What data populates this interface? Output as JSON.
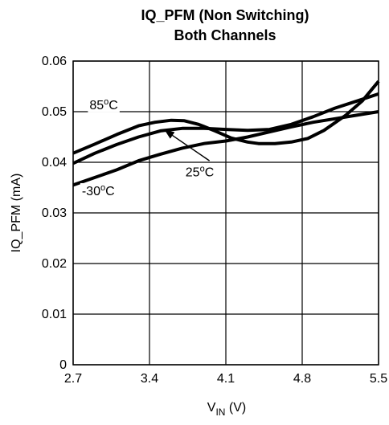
{
  "chart_data": {
    "type": "line",
    "title_lines": [
      "IQ_PFM (Non Switching)",
      "Both Channels"
    ],
    "ylabel": "IQ_PFM (mA)",
    "xlabel": {
      "main": "V",
      "sub": "IN",
      "unit": " (V)"
    },
    "x_ticks": [
      "2.7",
      "3.4",
      "4.1",
      "4.8",
      "5.5"
    ],
    "y_ticks": [
      "0",
      "0.01",
      "0.02",
      "0.03",
      "0.04",
      "0.05",
      "0.06"
    ],
    "xlim": [
      2.7,
      5.5
    ],
    "ylim": [
      0,
      0.06
    ],
    "grid": true,
    "series": [
      {
        "name": "85°C",
        "color": "#000000",
        "points": [
          [
            2.7,
            0.0418
          ],
          [
            2.9,
            0.0436
          ],
          [
            3.1,
            0.0455
          ],
          [
            3.3,
            0.0472
          ],
          [
            3.45,
            0.0479
          ],
          [
            3.6,
            0.0483
          ],
          [
            3.72,
            0.0482
          ],
          [
            3.85,
            0.0475
          ],
          [
            4.0,
            0.0462
          ],
          [
            4.15,
            0.0448
          ],
          [
            4.3,
            0.044
          ],
          [
            4.4,
            0.0437
          ],
          [
            4.55,
            0.0437
          ],
          [
            4.7,
            0.044
          ],
          [
            4.85,
            0.0447
          ],
          [
            5.0,
            0.0463
          ],
          [
            5.2,
            0.0493
          ],
          [
            5.35,
            0.0521
          ],
          [
            5.5,
            0.056
          ]
        ]
      },
      {
        "name": "25°C",
        "color": "#000000",
        "points": [
          [
            2.7,
            0.0398
          ],
          [
            2.9,
            0.0418
          ],
          [
            3.1,
            0.0435
          ],
          [
            3.3,
            0.045
          ],
          [
            3.5,
            0.0462
          ],
          [
            3.7,
            0.0467
          ],
          [
            3.9,
            0.0467
          ],
          [
            4.1,
            0.0465
          ],
          [
            4.3,
            0.0463
          ],
          [
            4.5,
            0.0465
          ],
          [
            4.7,
            0.0475
          ],
          [
            4.9,
            0.049
          ],
          [
            5.1,
            0.0507
          ],
          [
            5.3,
            0.0521
          ],
          [
            5.5,
            0.0535
          ]
        ]
      },
      {
        "name": "-30°C",
        "color": "#000000",
        "points": [
          [
            2.7,
            0.0355
          ],
          [
            2.9,
            0.037
          ],
          [
            3.1,
            0.0385
          ],
          [
            3.3,
            0.0403
          ],
          [
            3.5,
            0.0416
          ],
          [
            3.7,
            0.0428
          ],
          [
            3.9,
            0.0437
          ],
          [
            4.1,
            0.0442
          ],
          [
            4.3,
            0.045
          ],
          [
            4.5,
            0.046
          ],
          [
            4.7,
            0.047
          ],
          [
            4.9,
            0.0479
          ],
          [
            5.1,
            0.0486
          ],
          [
            5.3,
            0.0493
          ],
          [
            5.5,
            0.05
          ]
        ]
      }
    ],
    "annotations": [
      {
        "value": "85",
        "unit": "C",
        "sup": "o",
        "at": [
          2.85,
          0.0505
        ]
      },
      {
        "value": "25",
        "unit": "C",
        "sup": "o",
        "at": [
          3.73,
          0.0372
        ],
        "arrow_to": [
          3.55,
          0.0462
        ],
        "arrow_from": [
          3.95,
          0.0403
        ]
      },
      {
        "value": "-30",
        "unit": "C",
        "sup": "o",
        "at": [
          2.78,
          0.0335
        ]
      }
    ]
  }
}
